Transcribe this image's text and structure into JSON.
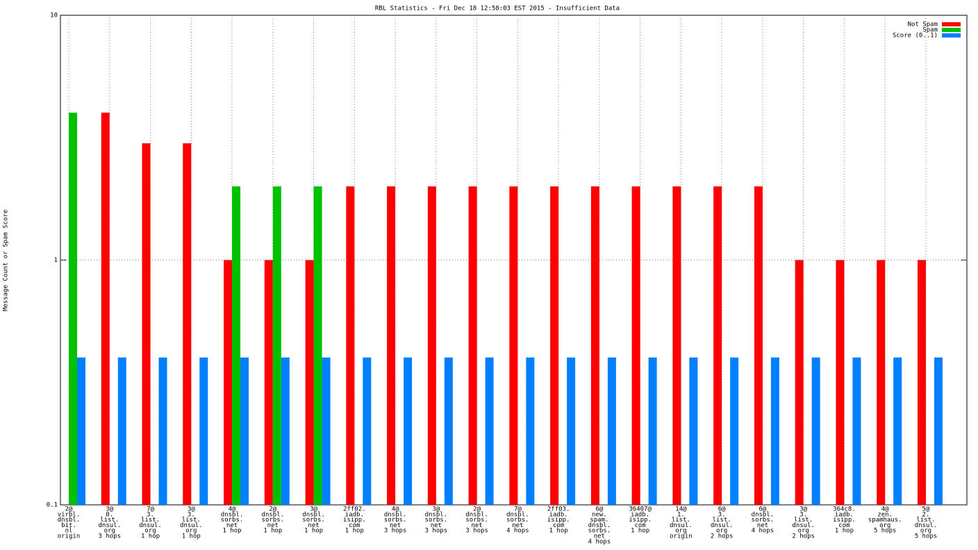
{
  "chart_data": {
    "type": "bar",
    "title": "RBL Statistics - Fri Dec 18 12:58:03 EST 2015 - Insufficient Data",
    "y_label": "Message Count or Spam Score",
    "log_scale": true,
    "ylim": [
      0.1,
      10
    ],
    "yticks": [
      0.1,
      1,
      10
    ],
    "grid": true,
    "legend": "top-right",
    "categories": [
      [
        "2@",
        "virbl.",
        "dnsbl.",
        "bit.",
        "nl",
        "origin"
      ],
      [
        "3@",
        "0.",
        "list.",
        "dnsul.",
        "org",
        "3 hops"
      ],
      [
        "7@",
        "3.",
        "list.",
        "dnsul.",
        "org",
        "1 hop"
      ],
      [
        "3@",
        "3.",
        "list.",
        "dnsul.",
        "org",
        "1 hop"
      ],
      [
        "4@",
        "dnsbl.",
        "sorbs.",
        "net",
        "1 hop"
      ],
      [
        "2@",
        "dnsbl.",
        "sorbs.",
        "net",
        "1 hop"
      ],
      [
        "3@",
        "dnsbl.",
        "sorbs.",
        "net",
        "1 hop"
      ],
      [
        "2ff02.",
        "iadb.",
        "isipp.",
        "com",
        "1 hop"
      ],
      [
        "4@",
        "dnsbl.",
        "sorbs.",
        "net",
        "3 hops"
      ],
      [
        "3@",
        "dnsbl.",
        "sorbs.",
        "net",
        "3 hops"
      ],
      [
        "2@",
        "dnsbl.",
        "sorbs.",
        "net",
        "3 hops"
      ],
      [
        "7@",
        "dnsbl.",
        "sorbs.",
        "net",
        "4 hops"
      ],
      [
        "2ff03.",
        "iadb.",
        "isipp.",
        "com",
        "1 hop"
      ],
      [
        "6@",
        "new.",
        "spam.",
        "dnsbl.",
        "sorbs.",
        "net",
        "4 hops"
      ],
      [
        "36407@",
        "iadb.",
        "isipp.",
        "com",
        "1 hop"
      ],
      [
        "14@",
        "1.",
        "list.",
        "dnsul.",
        "org",
        "origin"
      ],
      [
        "6@",
        "3.",
        "list.",
        "dnsul.",
        "org",
        "2 hops"
      ],
      [
        "6@",
        "dnsbl.",
        "sorbs.",
        "net",
        "4 hops"
      ],
      [
        "3@",
        "3.",
        "list.",
        "dnsul.",
        "org",
        "2 hops"
      ],
      [
        "364c8.",
        "iadb.",
        "isipp.",
        "com",
        "1 hop"
      ],
      [
        "4@",
        "zen.",
        "spamhaus.",
        "org",
        "5 hops"
      ],
      [
        "5@",
        "2.",
        "list.",
        "dnsul.",
        "org",
        "5 hops"
      ]
    ],
    "series": [
      {
        "name": "Not Spam",
        "color": "#ff0000",
        "values": [
          null,
          4,
          3,
          3,
          1,
          1,
          1,
          2,
          2,
          2,
          2,
          2,
          2,
          2,
          2,
          2,
          2,
          2,
          1,
          1,
          1,
          1
        ]
      },
      {
        "name": "Spam",
        "color": "#00c000",
        "values": [
          4,
          null,
          null,
          null,
          2,
          2,
          2,
          null,
          null,
          null,
          null,
          null,
          null,
          null,
          null,
          null,
          null,
          null,
          null,
          null,
          null,
          null
        ]
      },
      {
        "name": "Score (0..1)",
        "color": "#0080ff",
        "values": [
          0.4,
          0.4,
          0.4,
          0.4,
          0.4,
          0.4,
          0.4,
          0.4,
          0.4,
          0.4,
          0.4,
          0.4,
          0.4,
          0.4,
          0.4,
          0.4,
          0.4,
          0.4,
          0.4,
          0.4,
          0.4,
          0.4
        ]
      }
    ]
  }
}
